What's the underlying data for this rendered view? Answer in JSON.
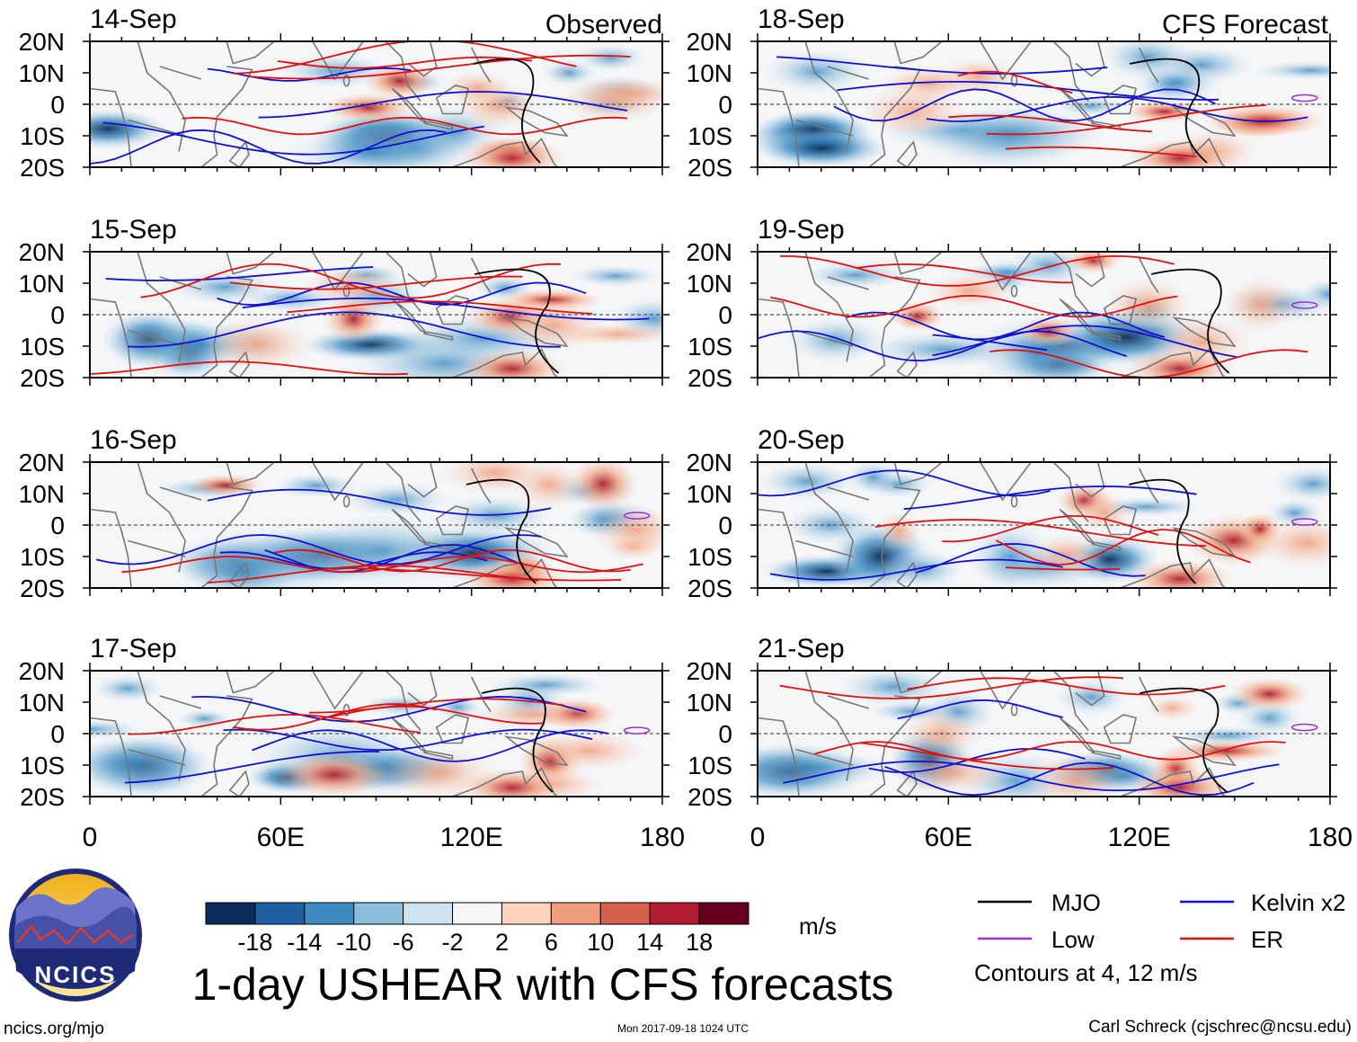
{
  "header": {
    "observed_label": "Observed",
    "forecast_label": "CFS Forecast"
  },
  "panels": [
    {
      "date": "14-Sep",
      "kind": "observed"
    },
    {
      "date": "15-Sep",
      "kind": "observed"
    },
    {
      "date": "16-Sep",
      "kind": "observed"
    },
    {
      "date": "17-Sep",
      "kind": "observed"
    },
    {
      "date": "18-Sep",
      "kind": "forecast"
    },
    {
      "date": "19-Sep",
      "kind": "forecast"
    },
    {
      "date": "20-Sep",
      "kind": "forecast"
    },
    {
      "date": "21-Sep",
      "kind": "forecast"
    }
  ],
  "axes": {
    "lat_ticks": [
      "20N",
      "10N",
      "0",
      "10S",
      "20S"
    ],
    "lon_ticks": [
      "0",
      "60E",
      "120E",
      "180"
    ],
    "lat_range": [
      -20,
      20
    ],
    "lon_range": [
      0,
      180
    ]
  },
  "colorbar": {
    "ticks": [
      "-18",
      "-14",
      "-10",
      "-6",
      "-2",
      "2",
      "6",
      "10",
      "14",
      "18"
    ],
    "colors": [
      "#0b2d5b",
      "#1f5fa5",
      "#3d8bc1",
      "#8cbedb",
      "#cfe3ef",
      "#f6f6f6",
      "#fbd3bf",
      "#ef9e7c",
      "#d4604d",
      "#b01d2f",
      "#67001f"
    ],
    "units": "m/s"
  },
  "legend": {
    "items": [
      {
        "label": "MJO",
        "color": "#000000"
      },
      {
        "label": "Kelvin x2",
        "color": "#1010d0"
      },
      {
        "label": "Low",
        "color": "#a030d0"
      },
      {
        "label": "ER",
        "color": "#e01010"
      }
    ],
    "contour_note": "Contours at 4, 12 m/s"
  },
  "footer": {
    "title": "1-day USHEAR with CFS forecasts",
    "website": "ncics.org/mjo",
    "timestamp": "Mon 2017-09-18 1024 UTC",
    "credit": "Carl Schreck (cjschrec@ncsu.edu)"
  },
  "logo": {
    "text": "NCICS"
  }
}
